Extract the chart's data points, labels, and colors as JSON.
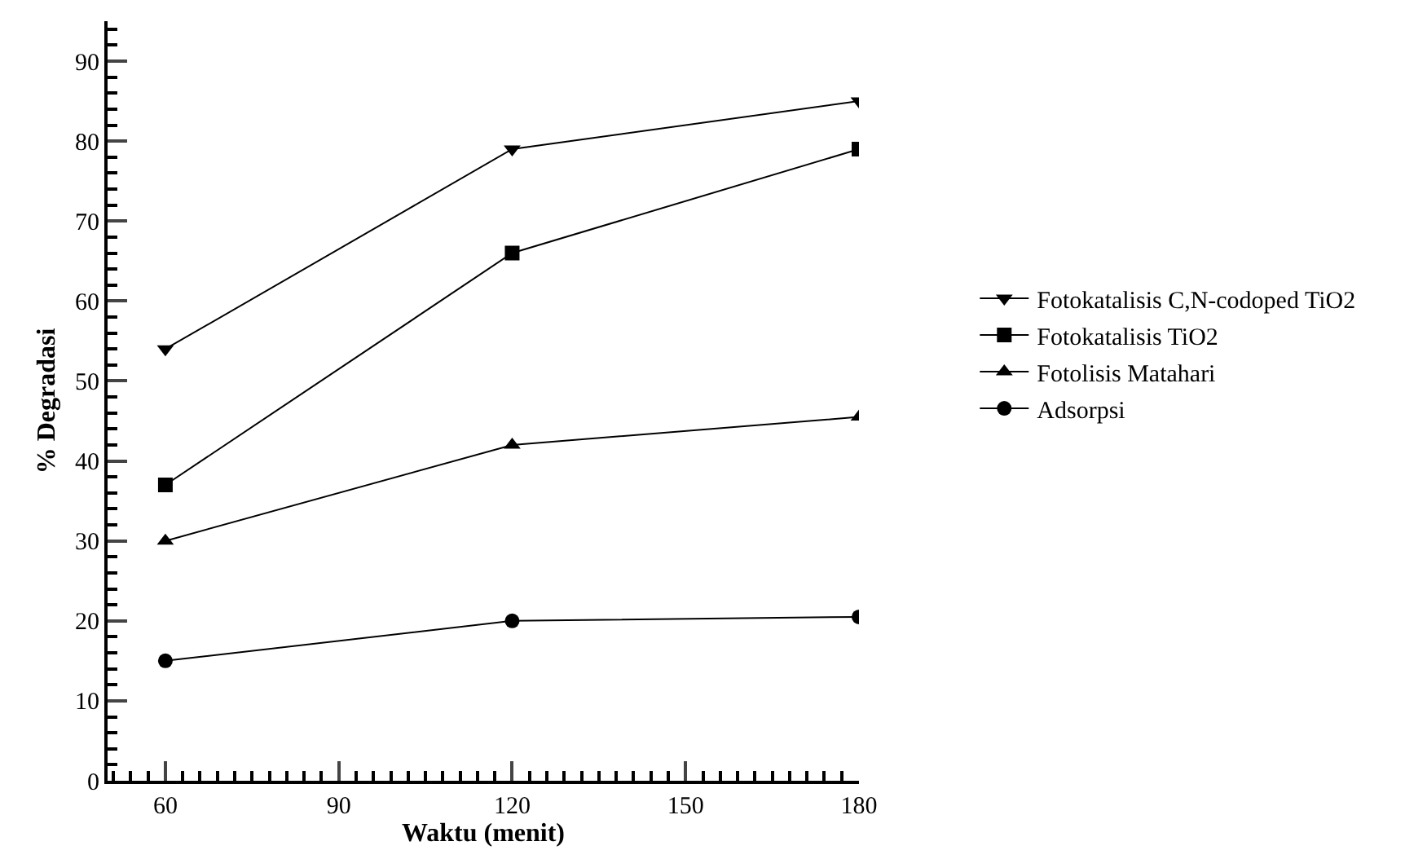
{
  "chart_data": {
    "type": "line",
    "xlabel": "Waktu (menit)",
    "ylabel": "% Degradasi",
    "x": [
      60,
      120,
      180
    ],
    "series": [
      {
        "name": "Fotokatalisis C,N-codoped TiO2",
        "color": "#000000",
        "marker": "triangle-down",
        "values": [
          54,
          79,
          85
        ]
      },
      {
        "name": "Fotokatalisis TiO2",
        "color": "#000000",
        "marker": "square",
        "values": [
          37,
          66,
          79
        ]
      },
      {
        "name": "Fotolisis Matahari",
        "color": "#000000",
        "marker": "triangle",
        "values": [
          30,
          42,
          45.5
        ]
      },
      {
        "name": "Adsorpsi",
        "color": "#000000",
        "marker": "circle",
        "values": [
          15,
          20,
          20.5
        ]
      }
    ],
    "xlim": [
      50,
      180
    ],
    "xticks": [
      60,
      90,
      120,
      150,
      180
    ],
    "ylim": [
      0,
      95
    ],
    "yticks": [
      0,
      10,
      20,
      30,
      40,
      50,
      60,
      70,
      80,
      90
    ],
    "grid": false,
    "legend": "right",
    "line_style": "solid"
  }
}
